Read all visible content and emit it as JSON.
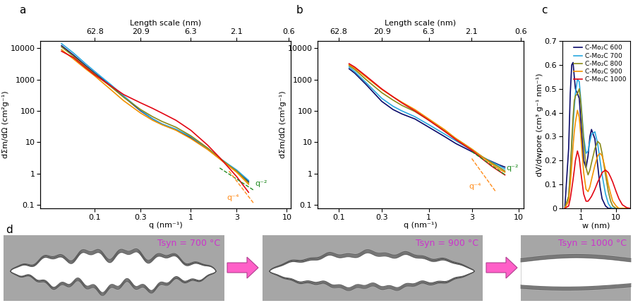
{
  "chart_data": [
    {
      "type": "line",
      "title": "a",
      "log": true,
      "x_label": "q (nm⁻¹)",
      "y_label": "dΣm/dΩ (cm²g⁻¹)",
      "x2_label": "Length scale (nm)",
      "xlim": [
        0.027,
        11
      ],
      "ylim": [
        0.077,
        17000
      ],
      "xticks": [
        0.1,
        0.3,
        1,
        3,
        10
      ],
      "yticks": [
        0.1,
        1,
        10,
        100,
        1000,
        10000
      ],
      "x2ticks": [
        {
          "value": 0.1,
          "label": "62.8"
        },
        {
          "value": 0.3006,
          "label": "20.9"
        },
        {
          "value": 0.9973,
          "label": "6.3"
        },
        {
          "value": 2.992,
          "label": "2.1"
        },
        {
          "value": 10.47,
          "label": "0.6"
        }
      ],
      "x": [
        0.045,
        0.06,
        0.08,
        0.1,
        0.15,
        0.2,
        0.3,
        0.4,
        0.5,
        0.7,
        1,
        1.5,
        2,
        2.5,
        3,
        4
      ],
      "series": [
        {
          "name": "C-Mo₂C 600",
          "color": "#0b0b6b",
          "values": [
            12000,
            6000,
            2800,
            1600,
            600,
            280,
            100,
            55,
            38,
            25,
            14,
            6,
            3,
            1.8,
            1.2,
            0.55
          ]
        },
        {
          "name": "C-Mo₂C 700",
          "color": "#29a8e0",
          "values": [
            14000,
            7000,
            3200,
            1800,
            650,
            300,
            105,
            55,
            38,
            26,
            15,
            6.3,
            3.1,
            1.9,
            1.3,
            0.6
          ]
        },
        {
          "name": "C-Mo₂C 800",
          "color": "#8b8b1a",
          "values": [
            11000,
            5500,
            2600,
            1500,
            560,
            270,
            110,
            65,
            46,
            30,
            16,
            6.5,
            3.1,
            1.8,
            1.2,
            0.5
          ]
        },
        {
          "name": "C-Mo₂C 900",
          "color": "#f39200",
          "values": [
            9000,
            4500,
            2200,
            1300,
            450,
            210,
            85,
            50,
            36,
            24,
            13,
            5.8,
            2.9,
            1.7,
            1.1,
            0.45
          ]
        },
        {
          "name": "C-Mo₂C 1000",
          "color": "#e30613",
          "values": [
            8000,
            5000,
            2400,
            1400,
            600,
            330,
            180,
            120,
            85,
            50,
            24,
            8,
            3.2,
            1.5,
            0.8,
            0.25
          ]
        }
      ],
      "guides": [
        {
          "label": "q⁻²",
          "color": "#228b22",
          "line_style": "dashed",
          "x": [
            2,
            4.5
          ],
          "values": [
            1.5,
            0.296
          ]
        },
        {
          "label": "q⁻⁴",
          "color": "#ff8c1a",
          "line_style": "dashed",
          "x": [
            2.5,
            4.5
          ],
          "values": [
            1.2,
            0.114
          ]
        }
      ]
    },
    {
      "type": "line",
      "title": "b",
      "log": true,
      "x_label": "q (nm⁻¹)",
      "y_label": "dΣm/dΩ (cm²g⁻¹)",
      "x2_label": "Length scale (nm)",
      "xlim": [
        0.058,
        11.3
      ],
      "ylim": [
        0.077,
        17000
      ],
      "xticks": [
        0.1,
        0.3,
        1,
        3,
        10
      ],
      "yticks": [
        0.1,
        1,
        10,
        100,
        1000,
        10000
      ],
      "x2ticks": [
        {
          "value": 0.1,
          "label": "62.8"
        },
        {
          "value": 0.3006,
          "label": "20.9"
        },
        {
          "value": 0.9973,
          "label": "6.3"
        },
        {
          "value": 2.992,
          "label": "2.1"
        },
        {
          "value": 10.47,
          "label": "0.6"
        }
      ],
      "x": [
        0.13,
        0.15,
        0.2,
        0.3,
        0.4,
        0.5,
        0.7,
        1,
        1.5,
        2,
        3,
        4,
        5,
        6,
        7
      ],
      "series": [
        {
          "name": "C-Mo₂C 600",
          "color": "#0b0b6b",
          "values": [
            2200,
            1600,
            700,
            200,
            110,
            80,
            55,
            30,
            15,
            9,
            5,
            3.2,
            2.4,
            1.9,
            1.6
          ]
        },
        {
          "name": "C-Mo₂C 700",
          "color": "#29a8e0",
          "values": [
            2500,
            1800,
            800,
            250,
            140,
            100,
            65,
            36,
            18,
            11,
            5.5,
            3.3,
            2.3,
            1.8,
            1.4
          ]
        },
        {
          "name": "C-Mo₂C 800",
          "color": "#8b8b1a",
          "values": [
            2800,
            2100,
            1000,
            380,
            220,
            150,
            95,
            50,
            23,
            13,
            6,
            3.3,
            2.2,
            1.6,
            1.2
          ]
        },
        {
          "name": "C-Mo₂C 900",
          "color": "#f39200",
          "values": [
            3000,
            2300,
            1200,
            480,
            280,
            190,
            110,
            55,
            25,
            13,
            6,
            3.2,
            2,
            1.4,
            1.1
          ]
        },
        {
          "name": "C-Mo₂C 1000",
          "color": "#e30613",
          "values": [
            3200,
            2500,
            1300,
            500,
            280,
            180,
            100,
            50,
            22,
            12,
            5.5,
            2.8,
            1.7,
            1.2,
            0.9
          ]
        }
      ],
      "guides": [
        {
          "label": "q⁻²",
          "color": "#228b22",
          "line_style": "dashed",
          "x": [
            3,
            7
          ],
          "values": [
            5,
            0.918
          ]
        },
        {
          "label": "q⁻⁴",
          "color": "#ff8c1a",
          "line_style": "dashed",
          "x": [
            3,
            5.5
          ],
          "values": [
            3,
            0.27
          ]
        }
      ]
    },
    {
      "type": "line",
      "title": "c",
      "log": "x",
      "legend": "upper right",
      "x_label": "w (nm)",
      "y_label": "dV/dwpore (cm³ g⁻¹ nm⁻¹)",
      "xlim": [
        0.3,
        25
      ],
      "ylim": [
        0,
        0.7
      ],
      "xticks": [
        1,
        10
      ],
      "yticks": [
        0,
        0.1,
        0.2,
        0.3,
        0.4,
        0.5,
        0.6,
        0.7
      ],
      "x": [
        0.35,
        0.45,
        0.5,
        0.55,
        0.6,
        0.65,
        0.7,
        0.8,
        0.9,
        1.0,
        1.2,
        1.4,
        1.6,
        1.8,
        2.0,
        2.5,
        3,
        3.5,
        4,
        5,
        6,
        7,
        8,
        10,
        12,
        15,
        20,
        25
      ],
      "series": [
        {
          "name": "C-Mo₂C 600",
          "color": "#0b0b6b",
          "values": [
            0,
            0.25,
            0.48,
            0.6,
            0.61,
            0.55,
            0.5,
            0.48,
            0.46,
            0.36,
            0.2,
            0.17,
            0.22,
            0.3,
            0.33,
            0.29,
            0.18,
            0.09,
            0.04,
            0.01,
            0,
            0,
            0,
            0,
            0,
            0,
            0,
            0
          ]
        },
        {
          "name": "C-Mo₂C 700",
          "color": "#29a8e0",
          "values": [
            0,
            0.05,
            0.15,
            0.26,
            0.35,
            0.42,
            0.48,
            0.54,
            0.53,
            0.45,
            0.3,
            0.23,
            0.24,
            0.28,
            0.31,
            0.32,
            0.27,
            0.2,
            0.14,
            0.06,
            0.02,
            0.005,
            0,
            0,
            0,
            0,
            0,
            0
          ]
        },
        {
          "name": "C-Mo₂C 800",
          "color": "#8b8b1a",
          "values": [
            0,
            0.05,
            0.15,
            0.28,
            0.38,
            0.45,
            0.47,
            0.48,
            0.5,
            0.44,
            0.28,
            0.17,
            0.14,
            0.16,
            0.19,
            0.25,
            0.28,
            0.27,
            0.23,
            0.14,
            0.07,
            0.03,
            0.01,
            0,
            0,
            0,
            0,
            0
          ]
        },
        {
          "name": "C-Mo₂C 900",
          "color": "#f39200",
          "values": [
            0,
            0.03,
            0.1,
            0.18,
            0.26,
            0.32,
            0.36,
            0.41,
            0.38,
            0.3,
            0.15,
            0.08,
            0.07,
            0.09,
            0.12,
            0.18,
            0.22,
            0.23,
            0.22,
            0.16,
            0.1,
            0.06,
            0.03,
            0.01,
            0,
            0,
            0,
            0
          ]
        },
        {
          "name": "C-Mo₂C 1000",
          "color": "#e30613",
          "values": [
            0,
            0.01,
            0.04,
            0.08,
            0.12,
            0.16,
            0.2,
            0.24,
            0.21,
            0.15,
            0.06,
            0.03,
            0.03,
            0.04,
            0.05,
            0.08,
            0.11,
            0.13,
            0.15,
            0.16,
            0.15,
            0.13,
            0.11,
            0.07,
            0.04,
            0.015,
            0.003,
            0
          ]
        }
      ]
    }
  ],
  "diagram": {
    "label": "d",
    "stages": [
      "Tsyn = 700 °C",
      "Tsyn = 900 °C",
      "Tsyn = 1000 °C"
    ]
  }
}
